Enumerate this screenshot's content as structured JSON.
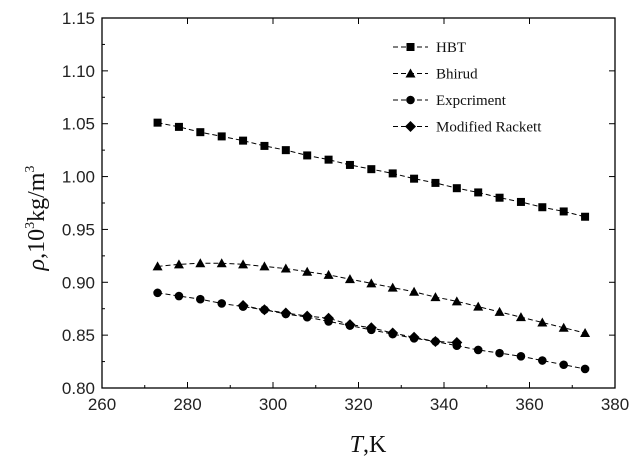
{
  "chart_data": {
    "type": "line",
    "xlabel_symbol": "T",
    "xlabel_unit": ",K",
    "ylabel_symbol": "ρ",
    "ylabel_prefix": ",10",
    "ylabel_exp": "3",
    "ylabel_unit": "kg/m",
    "ylabel_unit_exp": "3",
    "xlim": [
      260,
      380
    ],
    "ylim": [
      0.8,
      1.15
    ],
    "xticks": [
      "260",
      "280",
      "300",
      "320",
      "340",
      "360",
      "380"
    ],
    "yticks": [
      "0.80",
      "0.85",
      "0.90",
      "0.95",
      "1.00",
      "1.05",
      "1.10",
      "1.15"
    ],
    "grid": false,
    "legend_position": "top-right",
    "series": [
      {
        "name": "HBT",
        "marker": "square",
        "x": [
          273,
          278,
          283,
          288,
          293,
          298,
          303,
          308,
          313,
          318,
          323,
          328,
          333,
          338,
          343,
          348,
          353,
          358,
          363,
          368,
          373
        ],
        "y": [
          1.051,
          1.047,
          1.042,
          1.038,
          1.034,
          1.029,
          1.025,
          1.02,
          1.016,
          1.011,
          1.007,
          1.003,
          0.998,
          0.994,
          0.989,
          0.985,
          0.98,
          0.976,
          0.971,
          0.967,
          0.962
        ]
      },
      {
        "name": "Bhirud",
        "marker": "triangle",
        "x": [
          273,
          278,
          283,
          288,
          293,
          298,
          303,
          308,
          313,
          318,
          323,
          328,
          333,
          338,
          343,
          348,
          353,
          358,
          363,
          368,
          373
        ],
        "y": [
          0.915,
          0.917,
          0.918,
          0.918,
          0.917,
          0.915,
          0.913,
          0.91,
          0.907,
          0.903,
          0.899,
          0.895,
          0.891,
          0.886,
          0.882,
          0.877,
          0.872,
          0.867,
          0.862,
          0.857,
          0.852
        ]
      },
      {
        "name": "Expcriment",
        "marker": "circle",
        "x": [
          273,
          278,
          283,
          288,
          293,
          298,
          303,
          308,
          313,
          318,
          323,
          328,
          333,
          338,
          343,
          348,
          353,
          358,
          363,
          368,
          373
        ],
        "y": [
          0.89,
          0.887,
          0.884,
          0.88,
          0.877,
          0.874,
          0.87,
          0.867,
          0.863,
          0.859,
          0.855,
          0.851,
          0.847,
          0.844,
          0.84,
          0.836,
          0.833,
          0.83,
          0.826,
          0.822,
          0.818
        ]
      },
      {
        "name": "Modified Rackett",
        "marker": "diamond",
        "x": [
          293,
          298,
          303,
          308,
          313,
          318,
          323,
          328,
          333,
          338,
          343
        ],
        "y": [
          0.878,
          0.874,
          0.871,
          0.868,
          0.866,
          0.86,
          0.857,
          0.852,
          0.848,
          0.844,
          0.843
        ]
      }
    ]
  }
}
